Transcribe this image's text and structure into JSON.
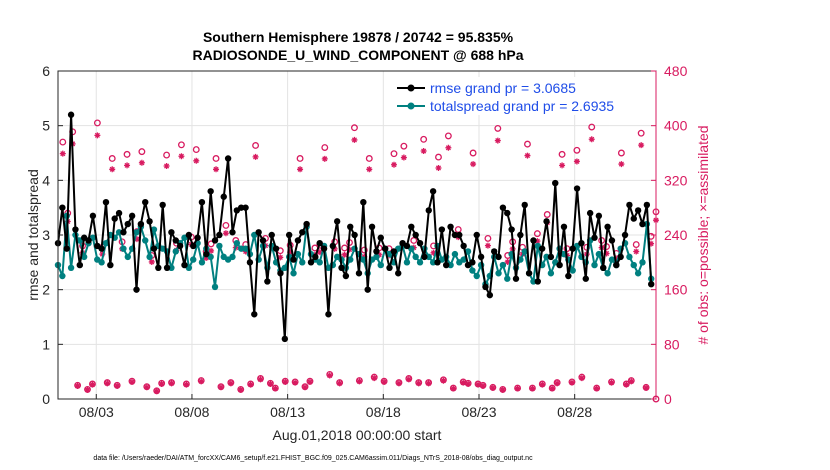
{
  "chart_data": {
    "type": "line",
    "title": "Southern Hemisphere 19878 / 20742 = 95.835%",
    "subtitle": "RADIOSONDE_U_WIND_COMPONENT @ 688 hPa",
    "xlabel": "Aug.01,2018 00:00:00 start",
    "ylabel": "rmse and totalspread",
    "ylabel_right": "# of obs: o=possible; ×=assimilated",
    "footnote": "data file: /Users/raeder/DAI/ATM_forcXX/CAM6_setup/f.e21.FHIST_BGC.f09_025.CAM6assim.011/Diags_NTrS_2018-08/obs_diag_output.nc",
    "xlim": [
      1,
      32.25
    ],
    "ylim": [
      0,
      6
    ],
    "ylim_right": [
      0,
      480
    ],
    "x_ticks": [
      3,
      8,
      13,
      18,
      23,
      28
    ],
    "x_tick_labels": [
      "08/03",
      "08/08",
      "08/13",
      "08/18",
      "08/23",
      "08/28"
    ],
    "y_ticks": [
      0,
      1,
      2,
      3,
      4,
      5,
      6
    ],
    "y_tick_labels": [
      "0",
      "1",
      "2",
      "3",
      "4",
      "5",
      "6"
    ],
    "y_right_ticks": [
      0,
      80,
      160,
      240,
      320,
      400,
      480
    ],
    "y_right_tick_labels": [
      "0",
      "80",
      "160",
      "240",
      "320",
      "400",
      "480"
    ],
    "legend_position": "top-right",
    "colors": {
      "rmse": "#000000",
      "spread": "#008080",
      "obs": "#d81b60",
      "grid": "#e3e3e3",
      "axis": "#262626"
    },
    "series": [
      {
        "name": "rmse grand pr = 3.0685",
        "key": "rmse",
        "values": [
          2.85,
          3.5,
          2.75,
          5.2,
          3.1,
          2.45,
          2.95,
          2.9,
          3.35,
          2.8,
          2.75,
          3.6,
          2.45,
          3.3,
          3.4,
          3.05,
          3.2,
          3.35,
          2.0,
          3.2,
          3.6,
          3.25,
          2.75,
          2.4,
          3.55,
          2.4,
          3.05,
          2.9,
          2.8,
          2.45,
          3.0,
          2.8,
          2.95,
          3.6,
          2.65,
          3.8,
          2.9,
          3.0,
          3.7,
          4.4,
          3.05,
          3.45,
          3.5,
          3.5,
          2.5,
          1.55,
          3.05,
          2.9,
          2.15,
          3.0,
          2.75,
          2.3,
          1.1,
          3.0,
          2.55,
          2.9,
          3.05,
          3.2,
          2.5,
          2.6,
          2.85,
          2.75,
          1.55,
          2.8,
          3.25,
          2.4,
          2.25,
          3.15,
          3.0,
          2.3,
          3.6,
          2.0,
          3.15,
          2.7,
          2.95,
          2.75,
          2.4,
          2.7,
          2.3,
          2.85,
          2.8,
          3.15,
          3.0,
          2.85,
          2.6,
          3.45,
          3.8,
          2.5,
          3.1,
          2.45,
          3.15,
          3.0,
          3.0,
          2.8,
          2.45,
          2.5,
          3.0,
          2.6,
          2.05,
          1.9,
          2.7,
          2.6,
          3.5,
          3.4,
          3.1,
          2.2,
          3.0,
          3.55,
          2.3,
          2.9,
          2.15,
          2.75,
          3.25,
          2.6,
          3.95,
          2.45,
          3.15,
          2.25,
          2.75,
          3.85,
          2.85,
          2.2,
          3.4,
          2.95,
          3.35,
          2.4,
          3.15,
          2.9,
          2.45,
          2.6,
          3.0,
          3.55,
          3.3,
          3.45,
          3.2,
          3.55,
          2.1
        ]
      },
      {
        "name": "totalspread grand pr = 2.6935",
        "key": "spread",
        "values": [
          2.45,
          2.25,
          3.35,
          2.4,
          3.0,
          2.9,
          2.6,
          2.85,
          2.95,
          2.55,
          2.5,
          2.85,
          3.0,
          2.95,
          3.05,
          2.75,
          2.6,
          2.75,
          3.05,
          3.15,
          2.9,
          2.6,
          3.1,
          2.8,
          2.75,
          2.7,
          2.4,
          2.7,
          2.85,
          2.95,
          2.4,
          2.55,
          2.85,
          2.5,
          2.75,
          2.6,
          2.05,
          2.8,
          2.6,
          2.55,
          2.6,
          2.85,
          2.75,
          2.75,
          2.65,
          3.0,
          2.55,
          2.8,
          2.4,
          2.8,
          2.5,
          2.35,
          2.4,
          2.6,
          2.3,
          2.65,
          2.5,
          3.15,
          2.65,
          2.55,
          2.5,
          2.8,
          2.4,
          2.45,
          2.6,
          2.55,
          2.4,
          2.55,
          2.75,
          2.65,
          2.55,
          2.3,
          2.55,
          2.6,
          2.45,
          2.75,
          2.65,
          2.5,
          2.75,
          2.8,
          2.5,
          2.75,
          2.6,
          2.5,
          2.75,
          2.6,
          2.5,
          2.8,
          2.55,
          2.6,
          2.45,
          2.65,
          2.5,
          2.55,
          2.7,
          2.35,
          2.25,
          2.45,
          2.1,
          2.25,
          2.6,
          2.3,
          2.45,
          2.2,
          2.65,
          2.4,
          2.55,
          2.7,
          2.3,
          2.15,
          2.8,
          2.45,
          2.6,
          2.3,
          2.5,
          2.75,
          2.65,
          2.55,
          2.35,
          2.8,
          2.6,
          2.5,
          2.9,
          2.45,
          2.65,
          2.4,
          2.3,
          2.55,
          2.45,
          2.75,
          2.85,
          2.6,
          2.45,
          2.3,
          2.5,
          3.2,
          2.2
        ]
      }
    ],
    "obs_possible_values": [
      376,
      272,
      391,
      20,
      224,
      14,
      22,
      404,
      222,
      24,
      352,
      20,
      230,
      358,
      26,
      245,
      362,
      18,
      210,
      12,
      23,
      357,
      24,
      228,
      372,
      22,
      237,
      365,
      27,
      216,
      227,
      352,
      18,
      254,
      24,
      232,
      14,
      226,
      22,
      371,
      30,
      235,
      23,
      16,
      217,
      26,
      225,
      25,
      352,
      18,
      26,
      221,
      225,
      368,
      36,
      230,
      24,
      221,
      229,
      397,
      27,
      218,
      352,
      32,
      221,
      26,
      220,
      359,
      24,
      370,
      30,
      232,
      24,
      380,
      24,
      224,
      354,
      28,
      385,
      16,
      248,
      25,
      23,
      360,
      22,
      20,
      235,
      17,
      396,
      14,
      210,
      230,
      16,
      222,
      373,
      16,
      242,
      22,
      270,
      16,
      24,
      358,
      220,
      25,
      364,
      32,
      222,
      398,
      16,
      232,
      223,
      25,
      213,
      360,
      22,
      27,
      226,
      389,
      17,
      238,
      274
    ]
  }
}
